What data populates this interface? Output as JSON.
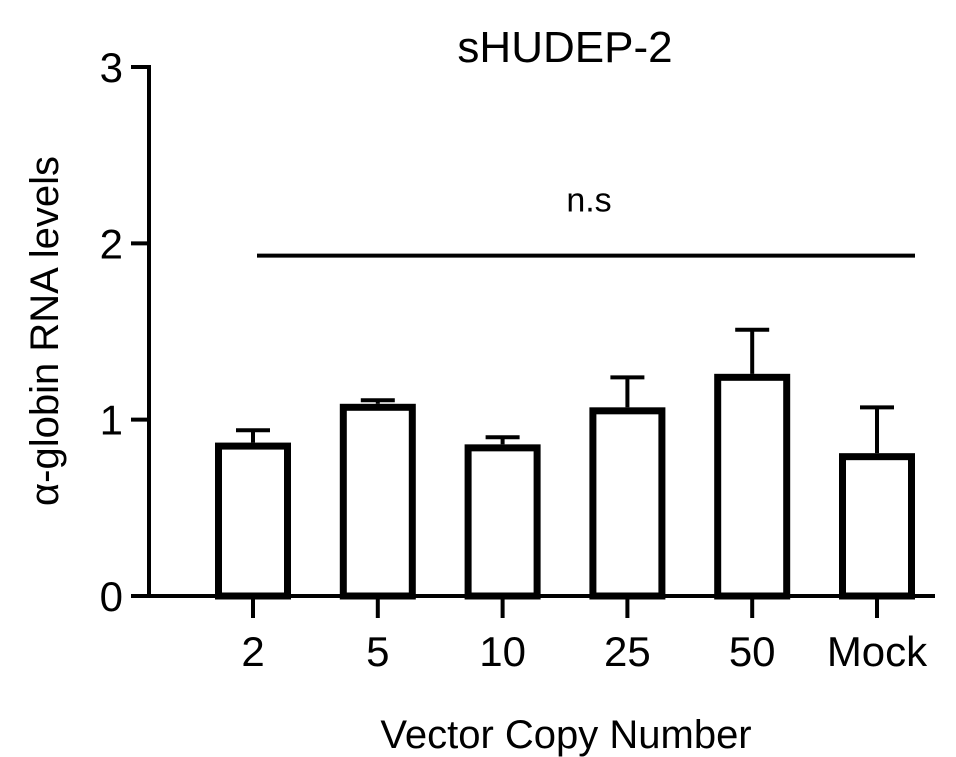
{
  "chart_data": {
    "type": "bar",
    "title": "sHUDEP-2",
    "xlabel": "Vector Copy Number",
    "ylabel": "α-globin RNA levels",
    "categories": [
      "2",
      "5",
      "10",
      "25",
      "50",
      "Mock"
    ],
    "values": [
      0.87,
      1.09,
      0.86,
      1.07,
      1.26,
      0.81
    ],
    "errors": [
      0.07,
      0.02,
      0.04,
      0.17,
      0.25,
      0.26
    ],
    "ylim": [
      0,
      3
    ],
    "yticks": [
      0,
      1,
      2,
      3
    ],
    "annotation": {
      "text": "n.s",
      "y": 1.93
    },
    "grid": false,
    "legend": "none",
    "bar_fill": "#ffffff",
    "bar_stroke": "#000000"
  }
}
